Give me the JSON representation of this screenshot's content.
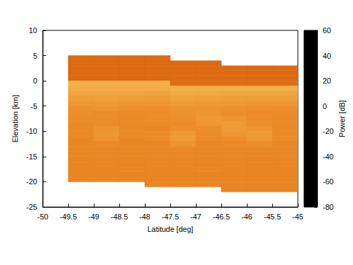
{
  "chart_data": {
    "type": "heatmap",
    "xlabel": "Latitude [deg]",
    "ylabel": "Elevation [km]",
    "xlim": [
      -50,
      -45
    ],
    "xticks": [
      -50,
      -49.5,
      -49,
      -48.5,
      -48,
      -47.5,
      -47,
      -46.5,
      -46,
      -45.5,
      -45
    ],
    "ylim": [
      -25,
      10
    ],
    "yticks": [
      -25,
      -20,
      -15,
      -10,
      -5,
      0,
      5,
      10
    ],
    "x_edges": [
      -49.5,
      -49,
      -48.5,
      -48,
      -47.5,
      -47,
      -46.5,
      -46,
      -45.5,
      -45
    ],
    "y_edges": [
      5,
      4,
      3,
      2,
      1,
      0,
      -1,
      -2,
      -3,
      -4,
      -5,
      -6,
      -7,
      -8,
      -9,
      -10,
      -11,
      -12,
      -13,
      -14,
      -15,
      -16,
      -17,
      -18,
      -19,
      -20,
      -21,
      -22
    ],
    "z": [
      [
        -8,
        -8,
        -8,
        -8,
        null,
        null,
        null,
        null,
        null
      ],
      [
        -8,
        -8,
        -8,
        -8,
        -8,
        -8,
        null,
        null,
        null
      ],
      [
        -8,
        -8,
        -8,
        -8,
        -8,
        -8,
        -8,
        -8,
        -8
      ],
      [
        -8,
        -8,
        -8,
        -8,
        -8,
        -8,
        -8,
        -8,
        -8
      ],
      [
        -8,
        -8,
        -8,
        -8,
        -8,
        -8,
        -8,
        -8,
        -8
      ],
      [
        20,
        20,
        20,
        20,
        -7,
        -7,
        -7,
        -7,
        -7
      ],
      [
        18,
        18,
        18,
        18,
        20,
        20,
        20,
        20,
        20
      ],
      [
        15,
        16,
        15,
        14,
        18,
        17,
        16,
        16,
        15
      ],
      [
        12,
        13,
        12,
        11,
        14,
        13,
        12,
        12,
        12
      ],
      [
        10,
        10,
        9,
        9,
        11,
        10,
        10,
        9,
        9
      ],
      [
        7,
        8,
        7,
        6,
        8,
        8,
        7,
        7,
        6
      ],
      [
        6,
        5,
        5,
        5,
        7,
        9,
        6,
        5,
        5
      ],
      [
        5,
        5,
        4,
        5,
        6,
        10,
        8,
        5,
        4
      ],
      [
        4,
        5,
        4,
        4,
        5,
        9,
        11,
        6,
        4
      ],
      [
        4,
        8,
        4,
        3,
        7,
        6,
        11,
        9,
        4
      ],
      [
        4,
        9,
        4,
        4,
        10,
        5,
        9,
        11,
        4
      ],
      [
        3,
        8,
        3,
        4,
        11,
        4,
        6,
        10,
        4
      ],
      [
        3,
        4,
        3,
        3,
        8,
        3,
        4,
        6,
        3
      ],
      [
        3,
        3,
        3,
        3,
        4,
        3,
        3,
        3,
        3
      ],
      [
        3,
        3,
        3,
        3,
        3,
        3,
        3,
        3,
        3
      ],
      [
        2,
        3,
        2,
        3,
        3,
        2,
        3,
        2,
        3
      ],
      [
        2,
        2,
        2,
        2,
        2,
        2,
        2,
        2,
        2
      ],
      [
        2,
        2,
        3,
        2,
        2,
        3,
        2,
        2,
        2
      ],
      [
        2,
        2,
        2,
        2,
        2,
        2,
        2,
        2,
        2
      ],
      [
        2,
        2,
        2,
        2,
        2,
        2,
        2,
        2,
        2
      ],
      [
        null,
        null,
        null,
        2,
        2,
        2,
        2,
        2,
        2
      ],
      [
        null,
        null,
        null,
        null,
        null,
        null,
        2,
        2,
        2
      ]
    ],
    "colorbar": {
      "label": "Power [dB]",
      "lim": [
        -80,
        60
      ],
      "ticks": [
        -80,
        -60,
        -40,
        -20,
        0,
        20,
        40,
        60
      ]
    }
  }
}
